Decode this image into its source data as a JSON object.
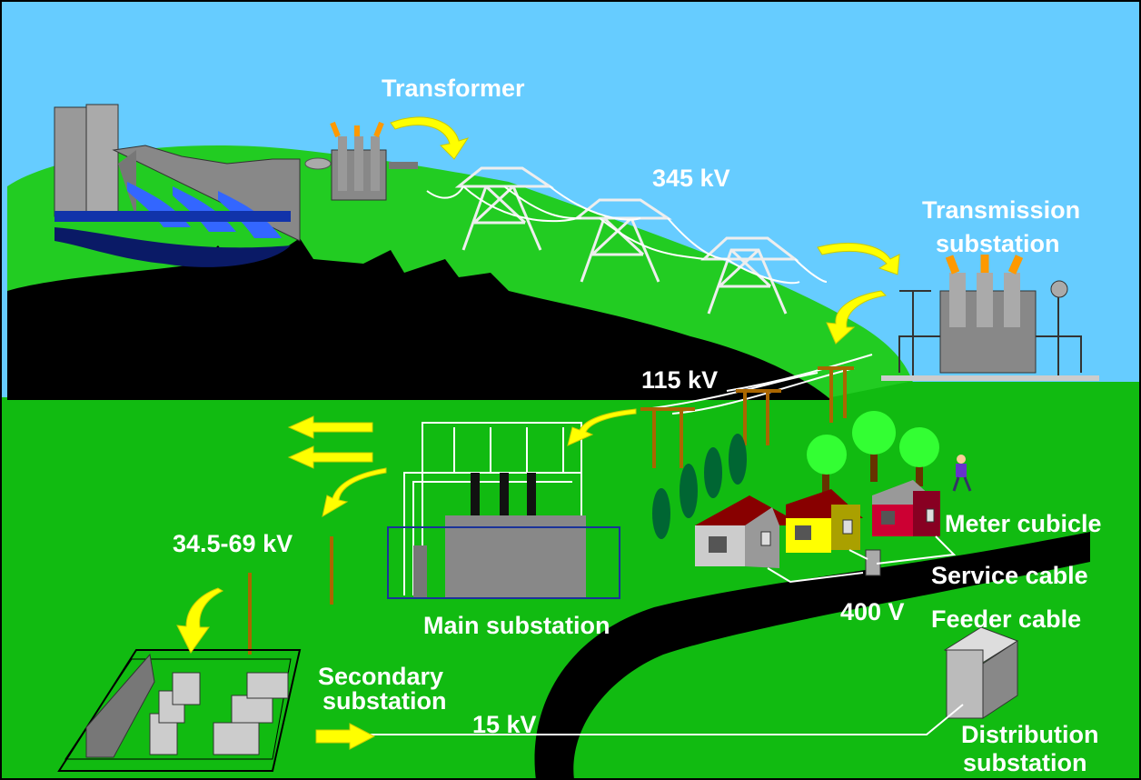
{
  "labels": {
    "transformer": "Transformer",
    "kv345": "345 kV",
    "transmission_substation": [
      "Transmission",
      "substation"
    ],
    "kv115": "115 kV",
    "kv34_69": "34.5-69 kV",
    "main_substation": "Main substation",
    "meter_cubicle": "Meter cubicle",
    "service_cable": "Service cable",
    "v400": "400 V",
    "feeder_cable": "Feeder cable",
    "secondary_substation": [
      "Secondary",
      "substation"
    ],
    "kv15": "15 kV",
    "distribution_substation": [
      "Distribution",
      "substation"
    ]
  }
}
